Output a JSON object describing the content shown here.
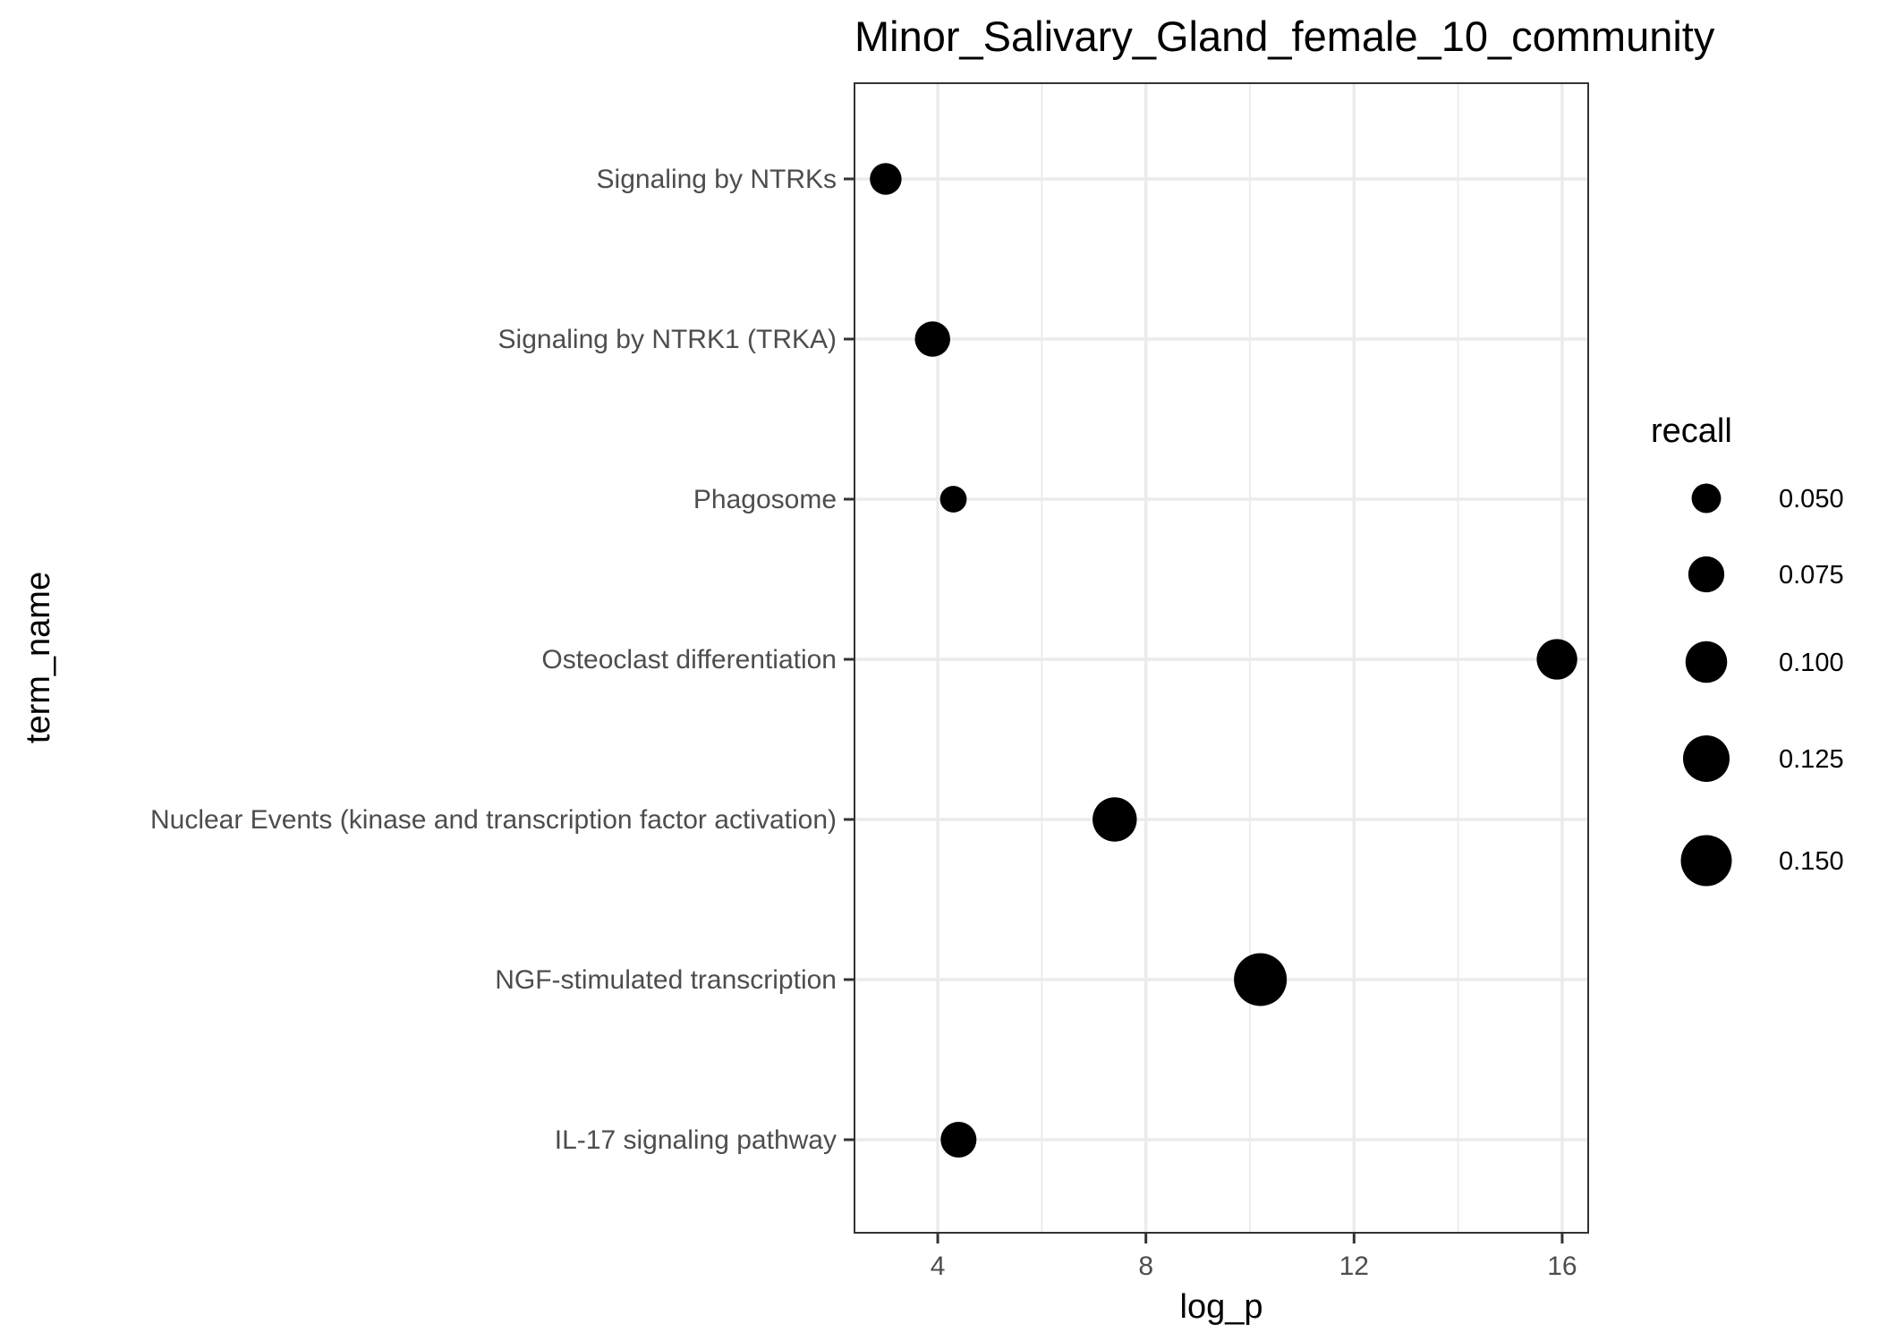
{
  "chart_data": {
    "type": "scatter",
    "title": "Minor_Salivary_Gland_female_10_community",
    "xlabel": "log_p",
    "ylabel": "term_name",
    "xlim": [
      2.4,
      16.5
    ],
    "xticks": [
      4,
      8,
      12,
      16
    ],
    "xminor": [
      6,
      10,
      14
    ],
    "grid": true,
    "categories": [
      "Signaling by NTRKs",
      "Signaling by NTRK1 (TRKA)",
      "Phagosome",
      "Osteoclast differentiation",
      "Nuclear Events (kinase and transcription factor activation)",
      "NGF-stimulated transcription",
      "IL-17 signaling pathway"
    ],
    "points": [
      {
        "term": "Signaling by NTRKs",
        "log_p": 3.0,
        "recall": 0.058
      },
      {
        "term": "Signaling by NTRK1 (TRKA)",
        "log_p": 3.9,
        "recall": 0.072
      },
      {
        "term": "Phagosome",
        "log_p": 4.3,
        "recall": 0.041
      },
      {
        "term": "Osteoclast differentiation",
        "log_p": 15.9,
        "recall": 0.095
      },
      {
        "term": "Nuclear Events (kinase and transcription factor activation)",
        "log_p": 7.4,
        "recall": 0.113
      },
      {
        "term": "NGF-stimulated transcription",
        "log_p": 10.2,
        "recall": 0.161
      },
      {
        "term": "IL-17 signaling pathway",
        "log_p": 4.4,
        "recall": 0.074
      }
    ],
    "size_legend": {
      "title": "recall",
      "placement": "right",
      "values": [
        0.05,
        0.075,
        0.1,
        0.125,
        0.15
      ],
      "labels": [
        "0.050",
        "0.075",
        "0.100",
        "0.125",
        "0.150"
      ]
    },
    "point_color": "#000000"
  }
}
